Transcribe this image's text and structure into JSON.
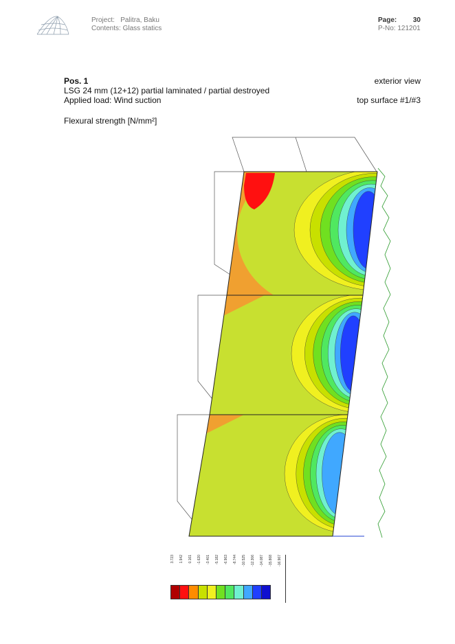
{
  "header": {
    "project_label": "Project:",
    "project_value": "Palitra, Baku",
    "contents_label": "Contents:",
    "contents_value": "Glass statics",
    "page_label": "Page:",
    "page_value": "30",
    "pno_label": "P-No:",
    "pno_value": "121201"
  },
  "body": {
    "pos": "Pos. 1",
    "view": "exterior view",
    "glass": "LSG 24 mm (12+12)   partial laminated / partial destroyed",
    "load": "Applied load: Wind suction",
    "surface": "top surface #1/#3",
    "quantity": "Flexural strength  [N/mm²]"
  },
  "legend": {
    "colors": [
      "#b00000",
      "#ff1010",
      "#ff8c00",
      "#c8e000",
      "#f0f020",
      "#70e020",
      "#50e860",
      "#70f0d0",
      "#40a8ff",
      "#2040ff",
      "#1010d0"
    ],
    "labels": [
      "3.723",
      "1.942",
      "0.161",
      "-1.620",
      "-3.401",
      "-5.182",
      "-6.963",
      "-8.744",
      "-10.525",
      "-12.306",
      "-14.087",
      "-15.868",
      "-16.967"
    ]
  }
}
